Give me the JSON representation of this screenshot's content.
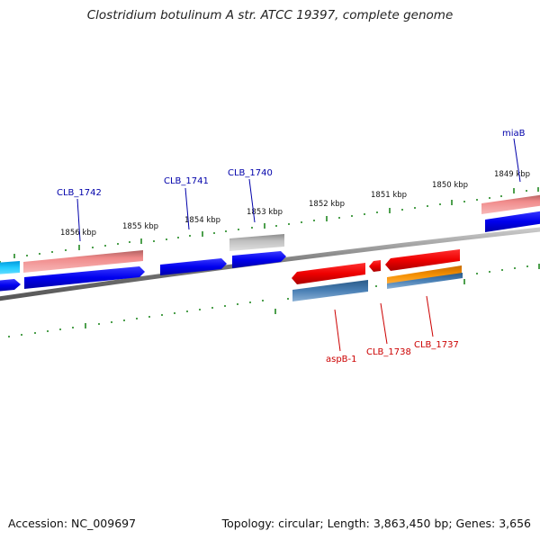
{
  "header": {
    "title": "Clostridium botulinum A str. ATCC 19397, complete genome"
  },
  "footer": {
    "accession": "Accession: NC_009697",
    "topology": "Topology: circular; Length: 3,863,450 bp; Genes: 3,656"
  },
  "scale": {
    "labels": [
      "1856 kbp",
      "1855 kbp",
      "1854 kbp",
      "1853 kbp",
      "1852 kbp",
      "1851 kbp",
      "1850 kbp",
      "1849 kbp"
    ]
  },
  "gene_labels": {
    "clb_1742": "CLB_1742",
    "clb_1741": "CLB_1741",
    "clb_1740": "CLB_1740",
    "miab": "miaB",
    "aspb1": "aspB-1",
    "clb_1738": "CLB_1738",
    "clb_1737": "CLB_1737"
  },
  "colors": {
    "forward_gene": "#0000ee",
    "forward_rna": "#ee8888",
    "pseudogene": "#b0b0b0",
    "reverse_gene": "#ee0000",
    "reverse_rna": "#4a7fb0",
    "reverse_misc": "#f08800",
    "highlight": "#22ccff",
    "backbone": "#777777",
    "ticks": "#228822"
  }
}
